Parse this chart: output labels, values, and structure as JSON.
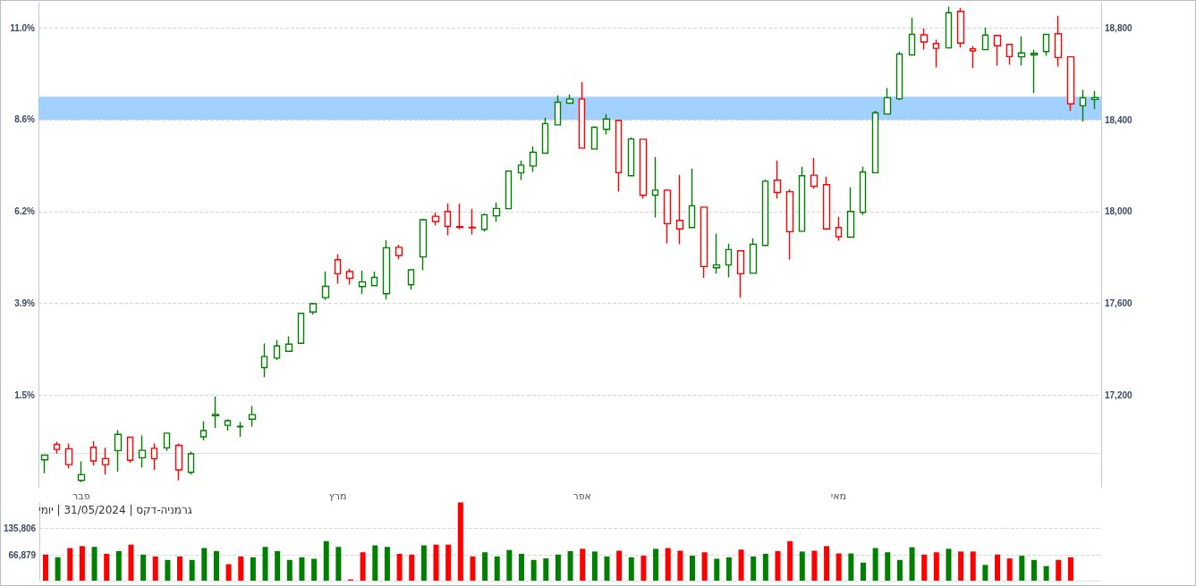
{
  "chart_data": [
    {
      "type": "candlestick",
      "categories": [
        null,
        null,
        null,
        "פבר",
        null,
        null,
        null,
        null,
        null,
        null,
        null,
        null,
        null,
        null,
        null,
        null,
        null,
        null,
        null,
        null,
        null,
        null,
        null,
        null,
        "מרץ",
        null,
        null,
        null,
        null,
        null,
        null,
        null,
        null,
        null,
        null,
        null,
        null,
        null,
        null,
        null,
        null,
        null,
        null,
        null,
        "אפר",
        null,
        null,
        null,
        null,
        null,
        null,
        null,
        null,
        null,
        null,
        null,
        null,
        null,
        null,
        null,
        null,
        null,
        null,
        null,
        null,
        "מאי",
        null,
        null,
        null,
        null,
        null,
        null,
        null,
        null,
        null,
        null,
        null,
        null,
        null,
        null,
        null,
        null,
        null,
        null,
        null,
        null,
        null
      ],
      "ohlc": [
        [
          16918,
          16938,
          16859,
          16938
        ],
        [
          16985,
          16997,
          16945,
          16963
        ],
        [
          16966,
          16989,
          16881,
          16897
        ],
        [
          16828,
          16911,
          16820,
          16853
        ],
        [
          16972,
          17000,
          16893,
          16913
        ],
        [
          16923,
          16970,
          16854,
          16897
        ],
        [
          16958,
          17047,
          16866,
          17029
        ],
        [
          17016,
          17016,
          16905,
          16916
        ],
        [
          16927,
          17024,
          16885,
          16959
        ],
        [
          16968,
          16989,
          16874,
          16922
        ],
        [
          16970,
          17034,
          16957,
          17034
        ],
        [
          16981,
          16989,
          16828,
          16874
        ],
        [
          16863,
          16954,
          16854,
          16944
        ],
        [
          17018,
          17086,
          17002,
          17045
        ],
        [
          17110,
          17194,
          17056,
          17116
        ],
        [
          17068,
          17095,
          17045,
          17088
        ],
        [
          17062,
          17082,
          17018,
          17064
        ],
        [
          17095,
          17152,
          17062,
          17115
        ],
        [
          17320,
          17425,
          17278,
          17368
        ],
        [
          17361,
          17439,
          17353,
          17414
        ],
        [
          17391,
          17456,
          17391,
          17422
        ],
        [
          17426,
          17556,
          17426,
          17556
        ],
        [
          17562,
          17602,
          17550,
          17598
        ],
        [
          17625,
          17739,
          17615,
          17674
        ],
        [
          17790,
          17813,
          17686,
          17729
        ],
        [
          17738,
          17751,
          17682,
          17709
        ],
        [
          17673,
          17742,
          17641,
          17693
        ],
        [
          17677,
          17738,
          17677,
          17713
        ],
        [
          17642,
          17874,
          17617,
          17842
        ],
        [
          17844,
          17855,
          17792,
          17808
        ],
        [
          17681,
          17746,
          17659,
          17746
        ],
        [
          17802,
          17968,
          17744,
          17964
        ],
        [
          17979,
          17995,
          17940,
          17956
        ],
        [
          18000,
          18035,
          17896,
          17935
        ],
        [
          17934,
          18035,
          17923,
          17931
        ],
        [
          17931,
          18012,
          17900,
          17929
        ],
        [
          17922,
          17991,
          17912,
          17986
        ],
        [
          17981,
          18039,
          17955,
          18013
        ],
        [
          18012,
          18176,
          18012,
          18176
        ],
        [
          18169,
          18222,
          18137,
          18202
        ],
        [
          18198,
          18283,
          18172,
          18258
        ],
        [
          18254,
          18409,
          18254,
          18383
        ],
        [
          18377,
          18506,
          18377,
          18476
        ],
        [
          18472,
          18510,
          18472,
          18490
        ],
        [
          18490,
          18564,
          18274,
          18276
        ],
        [
          18272,
          18372,
          18272,
          18367
        ],
        [
          18358,
          18424,
          18336,
          18403
        ],
        [
          18397,
          18397,
          18087,
          18169
        ],
        [
          18156,
          18323,
          18156,
          18316
        ],
        [
          18315,
          18315,
          18056,
          18071
        ],
        [
          18071,
          18237,
          17974,
          18093
        ],
        [
          18093,
          18097,
          17861,
          17947
        ],
        [
          17961,
          18160,
          17857,
          17924
        ],
        [
          17930,
          18187,
          17930,
          18025
        ],
        [
          18019,
          18019,
          17711,
          17760
        ],
        [
          17755,
          17903,
          17729,
          17767
        ],
        [
          17767,
          17860,
          17713,
          17834
        ],
        [
          17829,
          17829,
          17624,
          17729
        ],
        [
          17731,
          17883,
          17731,
          17857
        ],
        [
          17852,
          18139,
          17852,
          18132
        ],
        [
          18136,
          18222,
          18056,
          18083
        ],
        [
          18086,
          18097,
          17791,
          17912
        ],
        [
          17914,
          18195,
          17914,
          18156
        ],
        [
          18158,
          18233,
          18099,
          18110
        ],
        [
          18117,
          18152,
          17920,
          17924
        ],
        [
          17930,
          17977,
          17873,
          17890
        ],
        [
          17888,
          18105,
          17888,
          18000
        ],
        [
          17996,
          18195,
          17985,
          18172
        ],
        [
          18169,
          18439,
          18169,
          18430
        ],
        [
          18425,
          18538,
          18425,
          18496
        ],
        [
          18491,
          18696,
          18487,
          18686
        ],
        [
          18682,
          18845,
          18682,
          18772
        ],
        [
          18770,
          18798,
          18706,
          18739
        ],
        [
          18732,
          18748,
          18628,
          18711
        ],
        [
          18713,
          18892,
          18713,
          18866
        ],
        [
          18872,
          18888,
          18714,
          18734
        ],
        [
          18709,
          18721,
          18625,
          18700
        ],
        [
          18705,
          18802,
          18705,
          18769
        ],
        [
          18767,
          18767,
          18636,
          18722
        ],
        [
          18728,
          18728,
          18639,
          18675
        ],
        [
          18674,
          18763,
          18636,
          18691
        ],
        [
          18682,
          18705,
          18516,
          18689
        ],
        [
          18697,
          18772,
          18678,
          18772
        ],
        [
          18775,
          18853,
          18632,
          18671
        ],
        [
          18674,
          18674,
          18438,
          18469
        ],
        [
          18461,
          18530,
          18391,
          18496
        ],
        [
          18488,
          18526,
          18446,
          18496
        ]
      ],
      "colors": [
        "#008000",
        "#ff0000",
        "#ff0000",
        "#008000",
        "#ff0000",
        "#ff0000",
        "#008000",
        "#ff0000",
        "#008000",
        "#ff0000",
        "#008000",
        "#ff0000",
        "#008000",
        "#008000",
        "#008000",
        "#008000",
        "#008000",
        "#008000",
        "#008000",
        "#008000",
        "#008000",
        "#008000",
        "#008000",
        "#008000",
        "#ff0000",
        "#ff0000",
        "#008000",
        "#008000",
        "#008000",
        "#ff0000",
        "#008000",
        "#008000",
        "#ff0000",
        "#ff0000",
        "#ff0000",
        "#ff0000",
        "#008000",
        "#008000",
        "#008000",
        "#008000",
        "#008000",
        "#008000",
        "#008000",
        "#008000",
        "#ff0000",
        "#008000",
        "#008000",
        "#ff0000",
        "#008000",
        "#ff0000",
        "#008000",
        "#ff0000",
        "#ff0000",
        "#008000",
        "#ff0000",
        "#008000",
        "#008000",
        "#ff0000",
        "#008000",
        "#008000",
        "#ff0000",
        "#ff0000",
        "#008000",
        "#ff0000",
        "#ff0000",
        "#ff0000",
        "#008000",
        "#008000",
        "#008000",
        "#008000",
        "#008000",
        "#008000",
        "#ff0000",
        "#ff0000",
        "#008000",
        "#ff0000",
        "#ff0000",
        "#008000",
        "#ff0000",
        "#ff0000",
        "#008000",
        "#008000",
        "#008000",
        "#ff0000",
        "#ff0000",
        "#008000",
        "#008000"
      ],
      "ylim": [
        16800,
        18910
      ],
      "yticks": [
        {
          "value": 17200,
          "label": "17,200"
        },
        {
          "value": 17600,
          "label": "17,600"
        },
        {
          "value": 18000,
          "label": "18,000"
        },
        {
          "value": 18400,
          "label": "18,400"
        },
        {
          "value": 18800,
          "label": "18,800"
        }
      ],
      "y2lim": [
        -0.875,
        11.65
      ],
      "y2ticks": [
        {
          "value": 1.5,
          "label": "1.5%"
        },
        {
          "value": 3.875,
          "label": "3.9%"
        },
        {
          "value": 6.25,
          "label": "6.2%"
        },
        {
          "value": 8.625,
          "label": "8.6%"
        },
        {
          "value": 11.0,
          "label": "11.0%"
        }
      ],
      "grid": "y",
      "bands": [
        {
          "axis": "y",
          "from": 18400,
          "to": 18500,
          "color": "#99ccff"
        }
      ]
    },
    {
      "type": "bar",
      "categories": [
        null,
        null,
        null,
        null,
        null,
        null,
        null,
        null,
        null,
        null,
        null,
        null,
        null,
        null,
        null,
        null,
        null,
        null,
        null,
        null,
        null,
        null,
        null,
        null,
        null,
        null,
        null,
        null,
        null,
        null,
        null,
        null,
        null,
        null,
        null,
        null,
        null,
        null,
        null,
        null,
        null,
        null,
        null,
        null,
        null,
        null,
        null,
        null,
        null,
        null,
        null,
        null,
        null,
        null,
        null,
        null,
        null,
        null,
        null,
        null,
        null,
        null,
        null,
        null,
        null,
        null,
        null,
        null,
        null,
        null,
        null,
        null,
        null,
        null,
        null,
        null,
        null,
        null,
        null,
        null,
        null,
        null,
        null,
        null,
        null,
        null,
        null
      ],
      "values": [
        68000,
        61000,
        85000,
        90000,
        88000,
        70000,
        77000,
        94000,
        68000,
        63000,
        54000,
        63000,
        54000,
        85000,
        77000,
        43000,
        63000,
        61000,
        88000,
        77000,
        54000,
        61000,
        57000,
        103000,
        88000,
        3000,
        74000,
        92000,
        88000,
        70000,
        68000,
        92000,
        94000,
        94000,
        204000,
        63000,
        74000,
        63000,
        80000,
        70000,
        54000,
        58000,
        68000,
        77000,
        83000,
        76000,
        63000,
        78000,
        61000,
        65000,
        83000,
        85000,
        78000,
        65000,
        74000,
        57000,
        61000,
        81000,
        63000,
        70000,
        77000,
        103000,
        76000,
        78000,
        90000,
        71000,
        71000,
        47000,
        85000,
        74000,
        54000,
        87000,
        68000,
        74000,
        83000,
        76000,
        76000,
        41000,
        68000,
        58000,
        65000,
        54000,
        38000,
        54000,
        61000,
        null,
        null
      ],
      "colors": [
        "#ff0000",
        "#008000",
        "#ff0000",
        "#ff0000",
        "#008000",
        "#ff0000",
        "#008000",
        "#ff0000",
        "#008000",
        "#ff0000",
        "#008000",
        "#ff0000",
        "#008000",
        "#008000",
        "#008000",
        "#ff0000",
        "#ff0000",
        "#008000",
        "#008000",
        "#008000",
        "#008000",
        "#008000",
        "#008000",
        "#008000",
        "#008000",
        "#ff0000",
        "#ff0000",
        "#008000",
        "#008000",
        "#ff0000",
        "#ff0000",
        "#008000",
        "#ff0000",
        "#ff0000",
        "#ff0000",
        "#ff0000",
        "#008000",
        "#008000",
        "#008000",
        "#008000",
        "#008000",
        "#008000",
        "#008000",
        "#008000",
        "#ff0000",
        "#008000",
        "#008000",
        "#ff0000",
        "#008000",
        "#ff0000",
        "#008000",
        "#ff0000",
        "#ff0000",
        "#008000",
        "#ff0000",
        "#008000",
        "#008000",
        "#ff0000",
        "#008000",
        "#008000",
        "#ff0000",
        "#ff0000",
        "#008000",
        "#ff0000",
        "#ff0000",
        "#ff0000",
        "#008000",
        "#008000",
        "#008000",
        "#008000",
        "#008000",
        "#008000",
        "#ff0000",
        "#ff0000",
        "#008000",
        "#ff0000",
        "#ff0000",
        "#008000",
        "#ff0000",
        "#ff0000",
        "#008000",
        "#008000",
        "#008000",
        "#ff0000",
        "#ff0000",
        null,
        null
      ],
      "ylim": [
        0,
        205000
      ],
      "yticks": [
        {
          "value": 66879,
          "label": "66,879"
        },
        {
          "value": 135806,
          "label": "135,806"
        }
      ],
      "grid": "y",
      "annotations": [
        "גרמניה-דקס | 31/05/2024 | יומי"
      ]
    }
  ]
}
